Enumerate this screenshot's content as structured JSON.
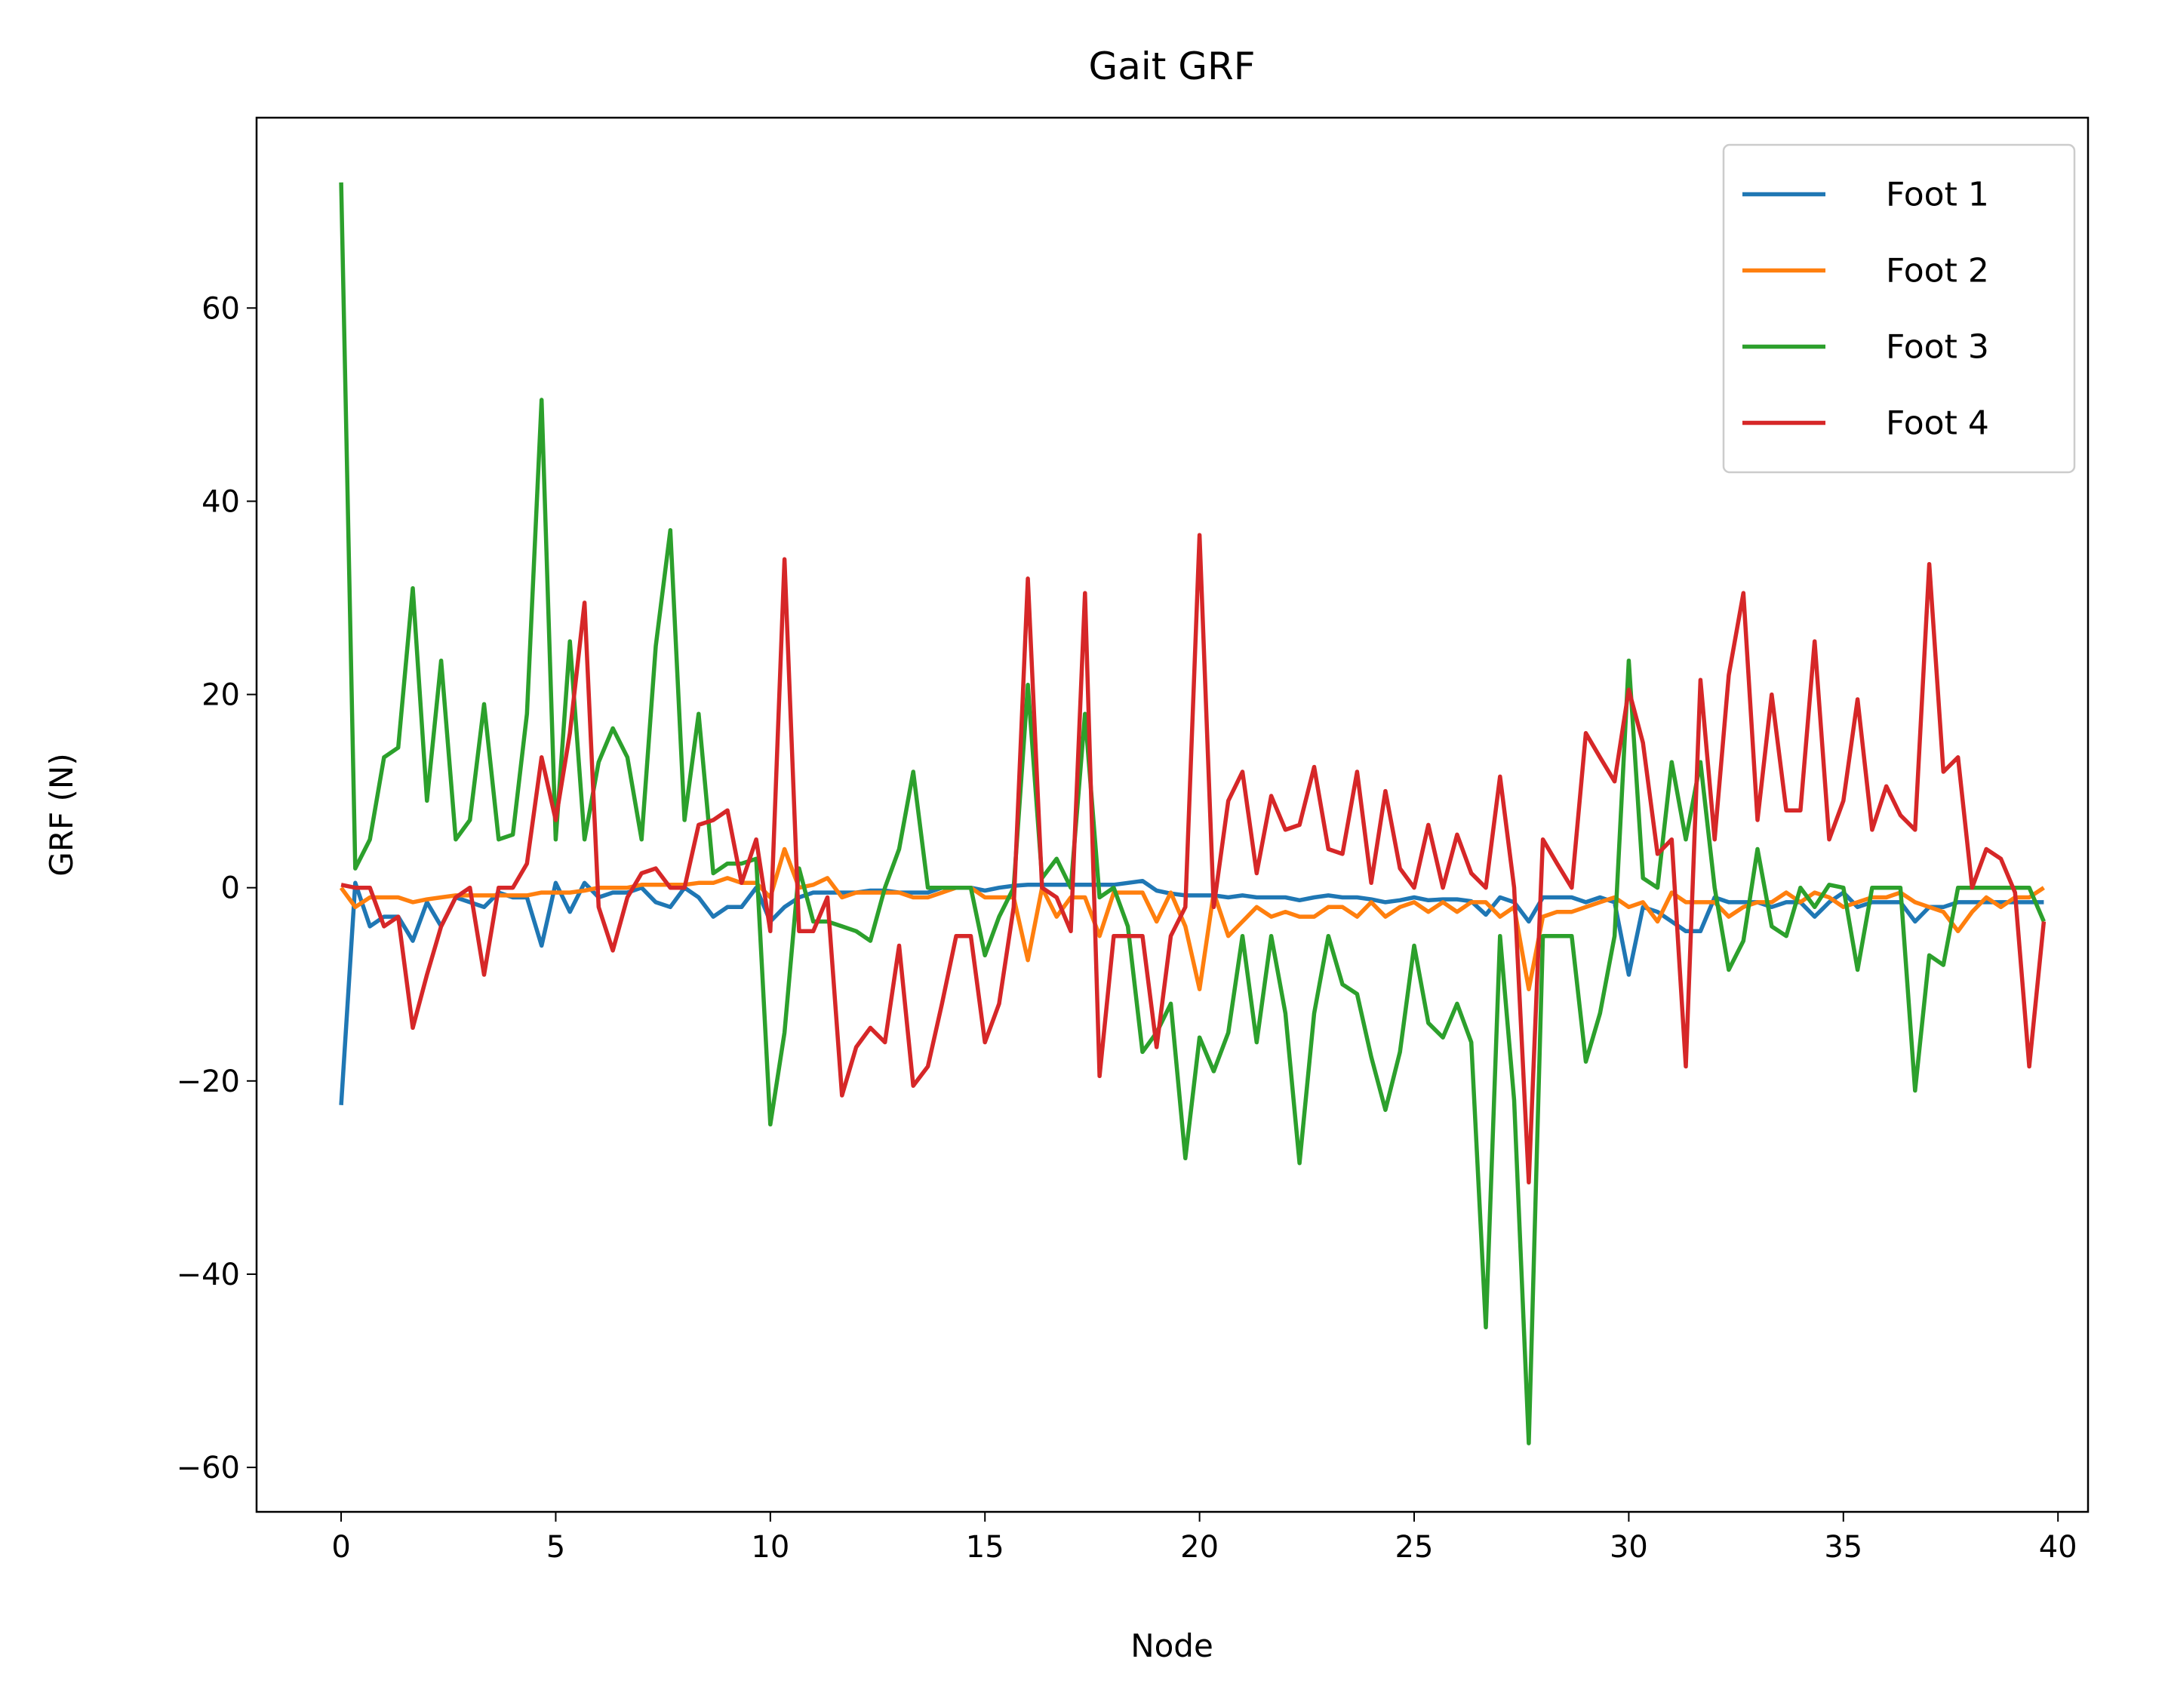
{
  "chart_data": {
    "type": "line",
    "title": "Gait GRF",
    "x_label": "Node",
    "y_label": "GRF (N)",
    "x": [
      0,
      0.33,
      0.67,
      1,
      1.33,
      1.67,
      2,
      2.33,
      2.67,
      3,
      3.33,
      3.67,
      4,
      4.33,
      4.67,
      5,
      5.33,
      5.67,
      6,
      6.33,
      6.67,
      7,
      7.33,
      7.67,
      8,
      8.33,
      8.67,
      9,
      9.33,
      9.67,
      10,
      10.33,
      10.67,
      11,
      11.33,
      11.67,
      12,
      12.33,
      12.67,
      13,
      13.33,
      13.67,
      14,
      14.33,
      14.67,
      15,
      15.33,
      15.67,
      16,
      16.33,
      16.67,
      17,
      17.33,
      17.67,
      18,
      18.33,
      18.67,
      19,
      19.33,
      19.67,
      20,
      20.33,
      20.67,
      21,
      21.33,
      21.67,
      22,
      22.33,
      22.67,
      23,
      23.33,
      23.67,
      24,
      24.33,
      24.67,
      25,
      25.33,
      25.67,
      26,
      26.33,
      26.67,
      27,
      27.33,
      27.67,
      28,
      28.33,
      28.67,
      29,
      29.33,
      29.67,
      30,
      30.33,
      30.67,
      31,
      31.33,
      31.67,
      32,
      32.33,
      32.67,
      33,
      33.33,
      33.67,
      34,
      34.33,
      34.67,
      35,
      35.33,
      35.67,
      36,
      36.33,
      36.67,
      37,
      37.33,
      37.67,
      38,
      38.33,
      38.67,
      39,
      39.33,
      39.67
    ],
    "series": [
      {
        "name": "Foot 1",
        "color": "#1f77b4",
        "values": [
          -22.5,
          0.5,
          -4,
          -3,
          -3,
          -5.5,
          -1.5,
          -4,
          -1,
          -1.5,
          -2,
          -0.5,
          -1,
          -1,
          -6,
          0.5,
          -2.5,
          0.5,
          -1,
          -0.5,
          -0.5,
          0,
          -1.5,
          -2,
          0,
          -1,
          -3,
          -2,
          -2,
          0,
          -3.5,
          -2,
          -1,
          -0.5,
          -0.5,
          -0.5,
          -0.5,
          -0.3,
          -0.3,
          -0.5,
          -0.5,
          -0.5,
          0,
          0,
          0,
          -0.3,
          0,
          0.2,
          0.3,
          0.3,
          0.3,
          0.3,
          0.3,
          0.3,
          0.3,
          0.5,
          0.7,
          -0.3,
          -0.6,
          -0.8,
          -0.8,
          -0.8,
          -1,
          -0.8,
          -1,
          -1,
          -1,
          -1.3,
          -1,
          -0.8,
          -1,
          -1,
          -1.2,
          -1.5,
          -1.3,
          -1,
          -1.3,
          -1.2,
          -1.2,
          -1.4,
          -2.8,
          -1,
          -1.5,
          -3.5,
          -1,
          -1,
          -1,
          -1.5,
          -1,
          -1.5,
          -9,
          -2,
          -2.5,
          -3.5,
          -4.5,
          -4.5,
          -1,
          -1.5,
          -1.5,
          -1.5,
          -2,
          -1.5,
          -1.5,
          -3,
          -1.5,
          -0.5,
          -2,
          -1.5,
          -1.5,
          -1.5,
          -3.5,
          -2,
          -2,
          -1.5,
          -1.5,
          -1.5,
          -1.5,
          -1.5,
          -1.5,
          -1.5
        ]
      },
      {
        "name": "Foot 2",
        "color": "#ff7f0e",
        "values": [
          0,
          -2,
          -1,
          -1,
          -1,
          -1.5,
          -1.2,
          -1,
          -0.8,
          -0.8,
          -0.8,
          -0.8,
          -0.8,
          -0.8,
          -0.5,
          -0.5,
          -0.5,
          -0.3,
          0,
          0,
          0,
          0.3,
          0.3,
          0.3,
          0.3,
          0.5,
          0.5,
          1,
          0.5,
          0.5,
          -1,
          4,
          0,
          0.3,
          1,
          -1,
          -0.5,
          -0.5,
          -0.5,
          -0.5,
          -1,
          -1,
          -0.5,
          0,
          0,
          -1,
          -1,
          -1,
          -7.5,
          0,
          -3,
          -1,
          -1,
          -5,
          -0.5,
          -0.5,
          -0.5,
          -3.5,
          -0.5,
          -4,
          -10.5,
          -0.5,
          -5,
          -3.5,
          -2,
          -3,
          -2.5,
          -3,
          -3,
          -2,
          -2,
          -3,
          -1.5,
          -3,
          -2,
          -1.5,
          -2.5,
          -1.5,
          -2.5,
          -1.5,
          -1.5,
          -3,
          -2,
          -10.5,
          -3,
          -2.5,
          -2.5,
          -2,
          -1.5,
          -1,
          -2,
          -1.5,
          -3.5,
          -0.5,
          -1.5,
          -1.5,
          -1.5,
          -3,
          -2,
          -1.5,
          -1.5,
          -0.5,
          -1.5,
          -0.5,
          -1,
          -2,
          -1.5,
          -1,
          -1,
          -0.5,
          -1.5,
          -2,
          -2.5,
          -4.5,
          -2.5,
          -1,
          -2,
          -1,
          -1,
          0
        ]
      },
      {
        "name": "Foot 3",
        "color": "#2ca02c",
        "values": [
          73,
          2,
          5,
          13.5,
          14.5,
          31,
          9,
          23.5,
          5,
          7,
          19,
          5,
          5.5,
          18,
          50.5,
          5,
          25.5,
          5,
          13,
          16.5,
          13.5,
          5,
          25,
          37,
          7,
          18,
          1.5,
          2.5,
          2.5,
          3,
          -24.5,
          -15,
          2,
          -3.5,
          -3.5,
          -4,
          -4.5,
          -5.5,
          0,
          4,
          12,
          0,
          0,
          0,
          0,
          -7,
          -3,
          0,
          21,
          1,
          3,
          0,
          18,
          -1,
          0,
          -4,
          -17,
          -15,
          -12,
          -28,
          -15.5,
          -19,
          -15,
          -5,
          -16,
          -5,
          -13,
          -28.5,
          -13,
          -5,
          -10,
          -11,
          -17.5,
          -23,
          -17,
          -6,
          -14,
          -15.5,
          -12,
          -16,
          -45.5,
          -5,
          -22,
          -57.5,
          -5,
          -5,
          -5,
          -18,
          -13,
          -5,
          23.5,
          1,
          0,
          13,
          5,
          13,
          0,
          -8.5,
          -5.5,
          4,
          -4,
          -5,
          0,
          -2,
          0.3,
          0,
          -8.5,
          0,
          0,
          0,
          -21,
          -7,
          -8,
          0,
          0,
          0,
          0,
          0,
          0,
          -3.5
        ]
      },
      {
        "name": "Foot 4",
        "color": "#d62728",
        "values": [
          0.3,
          0,
          0,
          -4,
          -3,
          -14.5,
          -9,
          -4,
          -1,
          0,
          -9,
          0,
          0,
          2.5,
          13.5,
          7,
          16,
          29.5,
          -2,
          -6.5,
          -1,
          1.5,
          2,
          0,
          0,
          6.5,
          7,
          8,
          0.5,
          5,
          -4.5,
          34,
          -4.5,
          -4.5,
          -1,
          -21.5,
          -16.5,
          -14.5,
          -16,
          -6,
          -20.5,
          -18.5,
          -12,
          -5,
          -5,
          -16,
          -12,
          -2,
          32,
          0,
          -1,
          -4.5,
          30.5,
          -19.5,
          -5,
          -5,
          -5,
          -16.5,
          -5,
          -2,
          36.5,
          -2,
          9,
          12,
          1.5,
          9.5,
          6,
          6.5,
          12.5,
          4,
          3.5,
          12,
          0.5,
          10,
          2,
          0,
          6.5,
          0,
          5.5,
          1.5,
          0,
          11.5,
          0,
          -30.5,
          5,
          2.5,
          0,
          16,
          13.5,
          11,
          20.5,
          15,
          3.5,
          5,
          -18.5,
          21.5,
          5,
          22,
          30.5,
          7,
          20,
          8,
          8,
          25.5,
          5,
          9,
          19.5,
          6,
          10.5,
          7.5,
          6,
          33.5,
          12,
          13.5,
          0,
          4,
          3,
          -0.5,
          -18.5,
          -3.5
        ]
      }
    ],
    "xlim": [
      -1.97,
      40.7
    ],
    "xticks": [
      0,
      5,
      10,
      15,
      20,
      25,
      30,
      35,
      40
    ],
    "ylim": [
      -64.6,
      79.7
    ],
    "yticks": [
      {
        "value": -60,
        "label": "−60"
      },
      {
        "value": -40,
        "label": "−40"
      },
      {
        "value": -20,
        "label": "−20"
      },
      0,
      20,
      40,
      60
    ],
    "legend": "upper right"
  }
}
